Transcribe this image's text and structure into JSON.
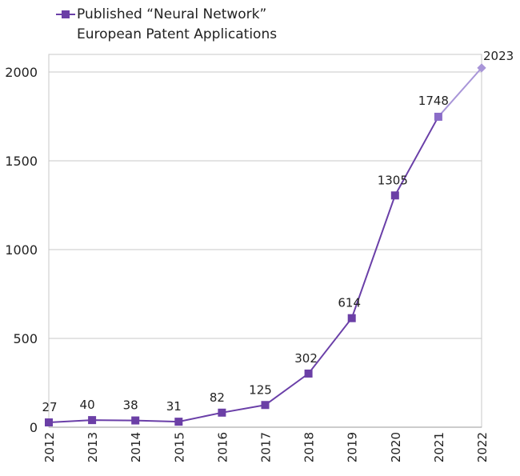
{
  "chart_data": {
    "type": "line",
    "title": "",
    "xlabel": "",
    "ylabel": "",
    "categories": [
      "2012",
      "2013",
      "2014",
      "2015",
      "2016",
      "2017",
      "2018",
      "2019",
      "2020",
      "2021",
      "2022"
    ],
    "series": [
      {
        "name": "Published “Neural Network” European Patent Applications",
        "values": [
          27,
          40,
          38,
          31,
          82,
          125,
          302,
          614,
          1305,
          1748,
          2023
        ],
        "data_labels": [
          "27",
          "40",
          "38",
          "31",
          "82",
          "125",
          "302",
          "614",
          "1305",
          "1748",
          "2023"
        ]
      }
    ],
    "ylim": [
      0,
      2100
    ],
    "yticks": [
      "0",
      "500",
      "1000",
      "1500",
      "2000"
    ],
    "grid": true,
    "legend": "top",
    "colors": {
      "line": "#6a3fa8",
      "marker": "#6b3fa6",
      "projected": "#a895d8",
      "grid": "#c8c8c8"
    },
    "notes_visual": "last segment (2021-2022) and 2022 marker drawn in lighter purple"
  }
}
